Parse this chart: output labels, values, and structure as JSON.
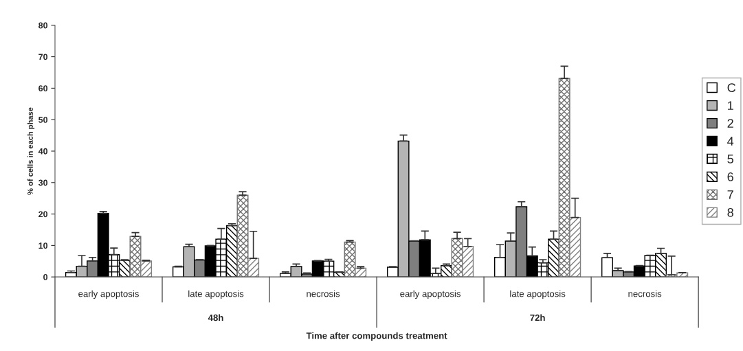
{
  "chart_data": {
    "type": "bar",
    "xlabel": "Time after compounds treatment",
    "ylabel": "% of cells in each phase",
    "categories": [
      "early apoptosis",
      "late apoptosis",
      "necrosis",
      "early apoptosis",
      "late apoptosis",
      "necrosis"
    ],
    "annotations": [
      "48h",
      "72h"
    ],
    "series": [
      {
        "name": "C",
        "color": "#ffffff",
        "values": [
          1.4,
          3.2,
          1.1,
          3.1,
          6.2,
          6.1
        ],
        "errors": [
          0.5,
          0.2,
          0.5,
          0.2,
          4.1,
          1.4
        ]
      },
      {
        "name": "1",
        "color": "#b4b4b4",
        "values": [
          3.4,
          9.6,
          3.3,
          43.2,
          11.4,
          2.0
        ],
        "errors": [
          3.4,
          0.8,
          0.8,
          1.9,
          2.6,
          0.8
        ]
      },
      {
        "name": "2",
        "color": "#7f7f7f",
        "values": [
          5.1,
          5.4,
          0.9,
          11.4,
          22.3,
          1.6
        ],
        "errors": [
          1.1,
          0.1,
          0.4,
          0.1,
          1.6,
          0.1
        ]
      },
      {
        "name": "4",
        "color": "#000000",
        "values": [
          20.2,
          9.9,
          5.1,
          11.8,
          6.7,
          3.5
        ],
        "errors": [
          0.6,
          0.1,
          0.1,
          2.8,
          2.8,
          0.1
        ]
      },
      {
        "name": "5",
        "color": "#000000",
        "values": [
          7.1,
          12.0,
          5.0,
          1.1,
          4.5,
          6.8
        ],
        "errors": [
          2.1,
          3.4,
          0.6,
          1.7,
          1.0,
          0.1
        ]
      },
      {
        "name": "6",
        "color": "#000000",
        "values": [
          5.3,
          16.3,
          1.5,
          3.6,
          12.0,
          7.5
        ],
        "errors": [
          0.2,
          0.6,
          0.1,
          0.5,
          2.6,
          1.6
        ]
      },
      {
        "name": "7",
        "color": "#707070",
        "values": [
          12.9,
          26.0,
          11.1,
          12.2,
          63.1,
          0.7
        ],
        "errors": [
          1.2,
          1.1,
          0.5,
          2.0,
          3.9,
          5.9
        ]
      },
      {
        "name": "8",
        "color": "#808080",
        "values": [
          5.1,
          5.9,
          2.8,
          9.7,
          18.9,
          1.3
        ],
        "errors": [
          0.2,
          8.6,
          0.5,
          2.5,
          6.1,
          0.1
        ]
      }
    ],
    "ylim": [
      0,
      80
    ],
    "yticks": [
      0,
      10,
      20,
      30,
      40,
      50,
      60,
      70,
      80
    ],
    "grid": false,
    "legend": "right"
  }
}
